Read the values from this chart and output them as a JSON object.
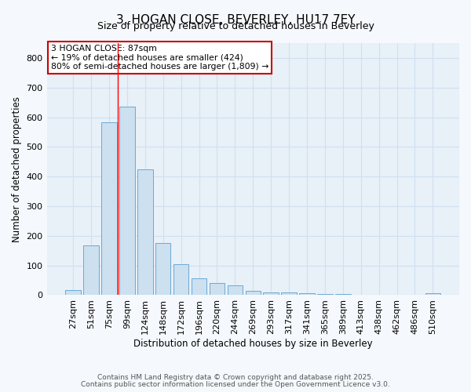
{
  "title": "3, HOGAN CLOSE, BEVERLEY, HU17 7EY",
  "subtitle": "Size of property relative to detached houses in Beverley",
  "xlabel": "Distribution of detached houses by size in Beverley",
  "ylabel": "Number of detached properties",
  "categories": [
    "27sqm",
    "51sqm",
    "75sqm",
    "99sqm",
    "124sqm",
    "148sqm",
    "172sqm",
    "196sqm",
    "220sqm",
    "244sqm",
    "269sqm",
    "293sqm",
    "317sqm",
    "341sqm",
    "365sqm",
    "389sqm",
    "413sqm",
    "438sqm",
    "462sqm",
    "486sqm",
    "510sqm"
  ],
  "values": [
    18,
    168,
    583,
    635,
    425,
    175,
    105,
    57,
    42,
    32,
    15,
    10,
    10,
    7,
    5,
    3,
    2,
    0,
    0,
    0,
    6
  ],
  "bar_color": "#cce0f0",
  "bar_edge_color": "#6aaad4",
  "grid_color": "#d0dff0",
  "plot_bg_color": "#e8f0f8",
  "fig_bg_color": "#f5f8fc",
  "red_line_x": 2.5,
  "annotation_text": "3 HOGAN CLOSE: 87sqm\n← 19% of detached houses are smaller (424)\n80% of semi-detached houses are larger (1,809) →",
  "annotation_box_facecolor": "#ffffff",
  "annotation_box_edgecolor": "#cc0000",
  "ylim": [
    0,
    850
  ],
  "yticks": [
    0,
    100,
    200,
    300,
    400,
    500,
    600,
    700,
    800
  ],
  "footnote1": "Contains HM Land Registry data © Crown copyright and database right 2025.",
  "footnote2": "Contains public sector information licensed under the Open Government Licence v3.0."
}
